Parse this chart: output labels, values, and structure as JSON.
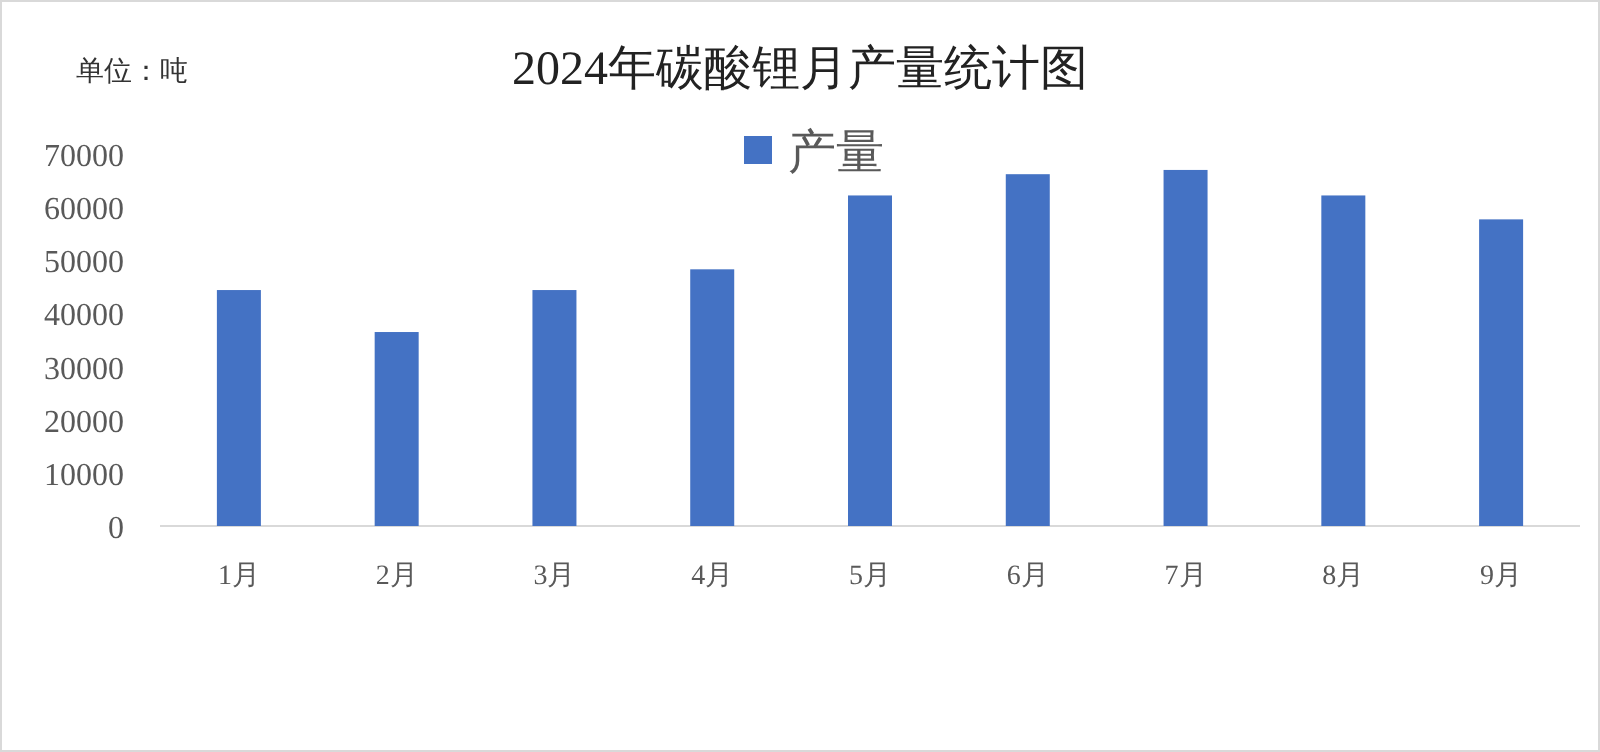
{
  "chart_data": {
    "type": "bar",
    "title": "2024年碳酸锂月产量统计图",
    "annotations": [
      "单位：吨"
    ],
    "categories": [
      "1月",
      "2月",
      "3月",
      "4月",
      "5月",
      "6月",
      "7月",
      "8月",
      "9月"
    ],
    "series": [
      {
        "name": "产量",
        "color": "#4472c4",
        "values": [
          44400,
          36500,
          44400,
          48300,
          62200,
          66200,
          67000,
          62200,
          57700
        ]
      }
    ],
    "ylim": [
      0,
      70000
    ],
    "yticks": [
      0,
      10000,
      20000,
      30000,
      40000,
      50000,
      60000,
      70000
    ],
    "grid": false,
    "legend": "top"
  }
}
